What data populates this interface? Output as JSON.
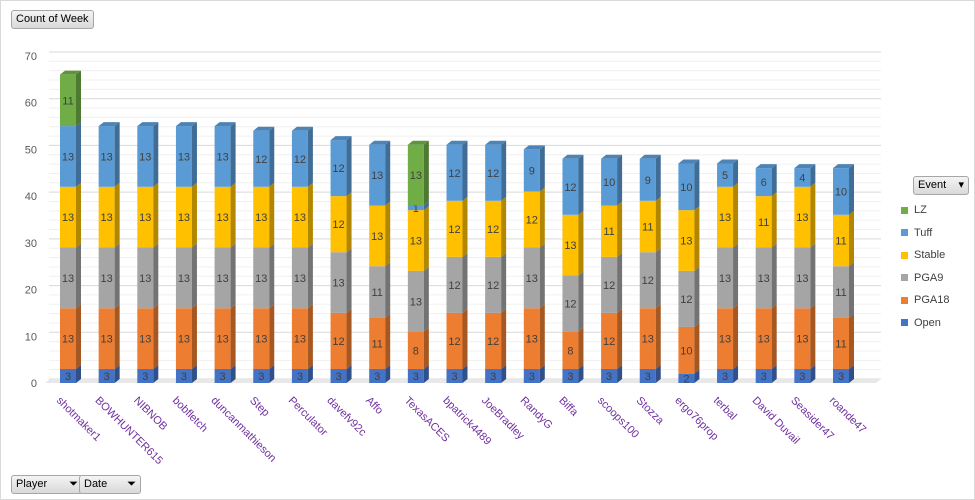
{
  "field_buttons": {
    "values": "Count of Week",
    "legend": "Event",
    "player": "Player",
    "date": "Date"
  },
  "chart_data": {
    "type": "bar",
    "stacked": true,
    "title": "",
    "xlabel": "",
    "ylabel": "",
    "ylim": [
      0,
      70
    ],
    "yticks": [
      0,
      10,
      20,
      30,
      40,
      50,
      60,
      70
    ],
    "grid": true,
    "legend_position": "right",
    "categories": [
      "shotmaker1",
      "BOWHUNTER615",
      "NIBNOB",
      "bobfletch",
      "duncanmathieson",
      "Step",
      "Perculator",
      "davefv92c",
      "Affo",
      "TexasACES",
      "bpatrick4489",
      "JoeBradley",
      "RandyG",
      "Biffa",
      "scoops100",
      "Stozza",
      "ergo76prop",
      "terbal",
      "David Duvail",
      "Seasider47",
      "roande47"
    ],
    "series": [
      {
        "name": "Open",
        "color": "#4472C4",
        "values": [
          3,
          3,
          3,
          3,
          3,
          3,
          3,
          3,
          3,
          3,
          3,
          3,
          3,
          3,
          3,
          3,
          2,
          3,
          3,
          3,
          3
        ]
      },
      {
        "name": "PGA18",
        "color": "#ED7D31",
        "values": [
          13,
          13,
          13,
          13,
          13,
          13,
          13,
          12,
          11,
          8,
          12,
          12,
          13,
          8,
          12,
          13,
          10,
          13,
          13,
          13,
          11
        ]
      },
      {
        "name": "PGA9",
        "color": "#A5A5A5",
        "values": [
          13,
          13,
          13,
          13,
          13,
          13,
          13,
          13,
          11,
          13,
          12,
          12,
          13,
          12,
          12,
          12,
          12,
          13,
          13,
          13,
          11
        ]
      },
      {
        "name": "Stable",
        "color": "#FFC000",
        "values": [
          13,
          13,
          13,
          13,
          13,
          13,
          13,
          12,
          13,
          13,
          12,
          12,
          12,
          13,
          11,
          11,
          13,
          13,
          11,
          13,
          11
        ]
      },
      {
        "name": "Tuff",
        "color": "#5B9BD5",
        "values": [
          13,
          13,
          13,
          13,
          13,
          12,
          12,
          12,
          13,
          1,
          12,
          12,
          9,
          12,
          10,
          9,
          10,
          5,
          6,
          4,
          10
        ]
      },
      {
        "name": "LZ",
        "color": "#70AD47",
        "values": [
          11,
          null,
          null,
          null,
          null,
          null,
          null,
          null,
          null,
          13,
          null,
          null,
          null,
          null,
          null,
          null,
          null,
          null,
          null,
          null,
          null
        ]
      }
    ]
  }
}
